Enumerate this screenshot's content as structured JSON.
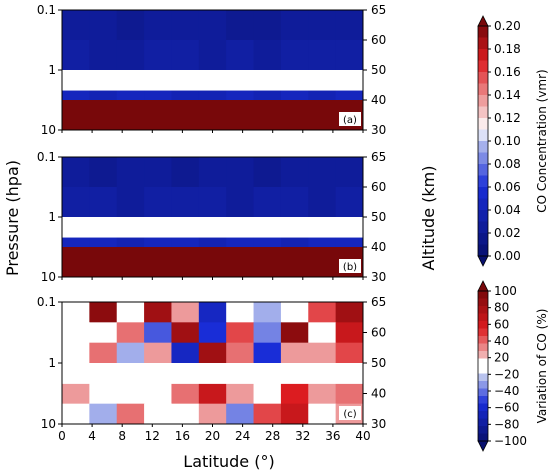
{
  "chart_data": {
    "type": "heatmap",
    "x": [
      0,
      4,
      8,
      12,
      16,
      20,
      24,
      28,
      32,
      36,
      40
    ],
    "xlim": [
      0,
      40
    ],
    "xlabel": "Latitude (°)",
    "xticks": [
      "0",
      "4",
      "8",
      "12",
      "16",
      "20",
      "24",
      "28",
      "32",
      "36",
      "40"
    ],
    "ylabel": "Pressure (hpa)",
    "y_scale": "log",
    "ylim": [
      10,
      0.1
    ],
    "yticks": [
      "0.1",
      "1",
      "10"
    ],
    "ylabel_right": "Altitude (km)",
    "right_ticks": [
      "65",
      "60",
      "50",
      "40",
      "30"
    ],
    "grid": false,
    "panels": [
      {
        "tag": "(a)",
        "colorbar": "co",
        "levels": [
          1,
          3,
          10
        ],
        "rows": [
          [
            0.025,
            0.025,
            0.02,
            0.025,
            0.025,
            0.025,
            0.02,
            0.02,
            0.025,
            0.025,
            0.025
          ],
          [
            0.03,
            0.025,
            0.025,
            0.03,
            0.03,
            0.025,
            0.03,
            0.025,
            0.03,
            0.03,
            0.03
          ],
          [
            0.045,
            0.04,
            0.045,
            0.045,
            0.04,
            0.04,
            0.045,
            0.04,
            0.045,
            0.04,
            0.045
          ],
          [
            0.2,
            0.2,
            0.2,
            0.2,
            0.2,
            0.2,
            0.2,
            0.2,
            0.2,
            0.2,
            0.2
          ]
        ],
        "white_band": [
          1,
          2.2
        ]
      },
      {
        "tag": "(b)",
        "colorbar": "co",
        "levels": [
          1,
          3,
          10
        ],
        "rows": [
          [
            0.025,
            0.02,
            0.025,
            0.025,
            0.02,
            0.025,
            0.025,
            0.02,
            0.025,
            0.025,
            0.025
          ],
          [
            0.03,
            0.03,
            0.025,
            0.03,
            0.03,
            0.03,
            0.025,
            0.03,
            0.03,
            0.025,
            0.03
          ],
          [
            0.045,
            0.045,
            0.04,
            0.045,
            0.045,
            0.04,
            0.045,
            0.045,
            0.04,
            0.045,
            0.045
          ],
          [
            0.2,
            0.2,
            0.2,
            0.2,
            0.2,
            0.2,
            0.2,
            0.2,
            0.2,
            0.2,
            0.2
          ]
        ],
        "white_band": [
          1,
          2.2
        ]
      },
      {
        "tag": "(c)",
        "colorbar": "var",
        "levels": [
          0.1,
          0.2,
          0.5,
          1,
          3,
          10
        ],
        "rows": [
          [
            10,
            90,
            10,
            80,
            20,
            -60,
            10,
            -20,
            -10,
            40,
            80
          ],
          [
            0,
            -10,
            30,
            -40,
            80,
            -50,
            40,
            -30,
            90,
            -10,
            60
          ],
          [
            10,
            30,
            -20,
            20,
            -60,
            80,
            30,
            -50,
            20,
            20,
            40
          ],
          [
            0,
            0,
            0,
            0,
            0,
            0,
            0,
            0,
            0,
            0,
            0
          ],
          [
            20,
            10,
            -10,
            0,
            30,
            60,
            20,
            10,
            50,
            20,
            30
          ],
          [
            0,
            -20,
            30,
            10,
            -10,
            20,
            -30,
            40,
            60,
            10,
            20
          ]
        ],
        "white_band": [
          1,
          2.2
        ]
      }
    ],
    "colorbars": [
      {
        "id": "co",
        "label": "CO Concentration (vmr)",
        "ticks": [
          "0.00",
          "0.02",
          "0.04",
          "0.06",
          "0.08",
          "0.10",
          "0.12",
          "0.14",
          "0.16",
          "0.18",
          "0.20"
        ],
        "range": [
          0,
          0.2
        ]
      },
      {
        "id": "var",
        "label": "Variation of CO (%)",
        "ticks": [
          "−100",
          "−80",
          "−60",
          "−40",
          "−20",
          "20",
          "40",
          "60",
          "80",
          "100"
        ],
        "range": [
          -100,
          100
        ]
      }
    ]
  }
}
